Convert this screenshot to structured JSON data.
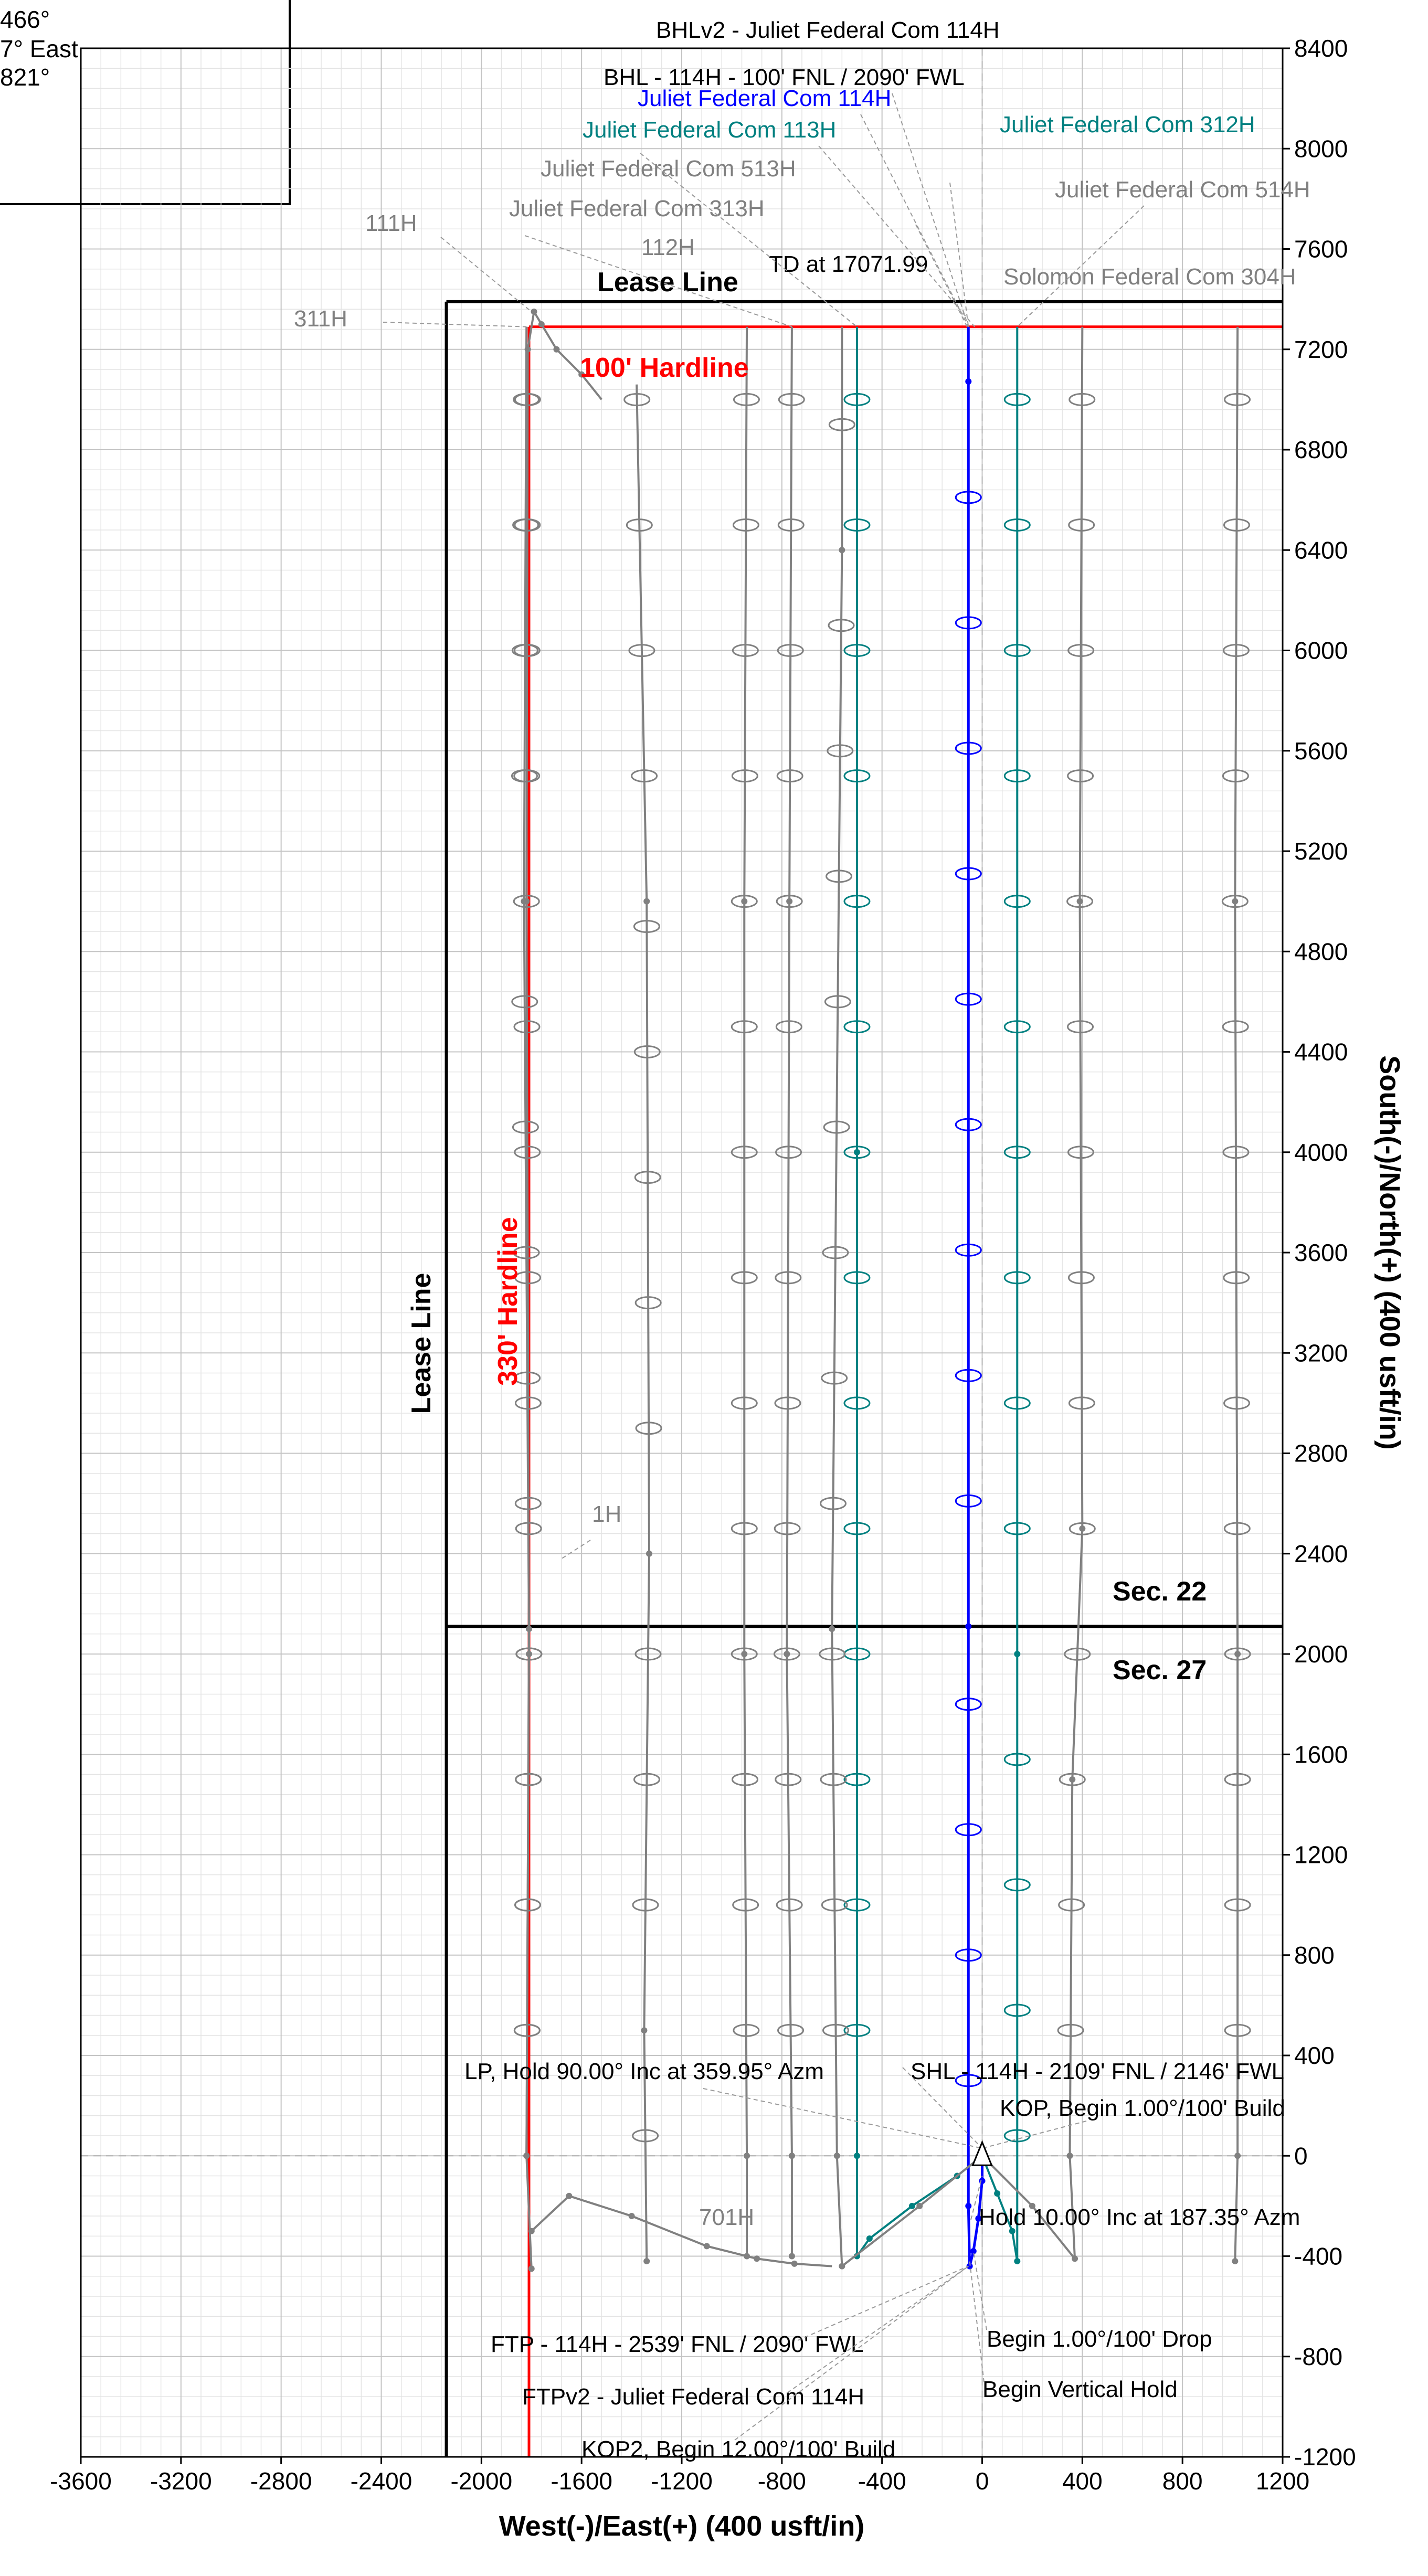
{
  "info_box": {
    "lines": [
      "466°",
      "7° East",
      "821°"
    ]
  },
  "chart_data": {
    "type": "line",
    "title": "",
    "xlabel": "West(-)/East(+) (400 usft/in)",
    "ylabel": "South(-)/North(+) (400 usft/in)",
    "xlim": [
      -3600,
      1200
    ],
    "ylim": [
      -1200,
      8400
    ],
    "x_ticks": [
      "-3600",
      "-3200",
      "-2800",
      "-2400",
      "-2000",
      "-1600",
      "-1200",
      "-800",
      "-400",
      "0",
      "400",
      "800",
      "1200"
    ],
    "y_ticks": [
      "8400",
      "8000",
      "7600",
      "7200",
      "6800",
      "6400",
      "6000",
      "5600",
      "5200",
      "4800",
      "4400",
      "4000",
      "3600",
      "3200",
      "2800",
      "2400",
      "2000",
      "1600",
      "1200",
      "800",
      "400",
      "0",
      "-400",
      "-800",
      "-1200"
    ],
    "grid": true,
    "colors": {
      "subject_well": "#0000ff",
      "offset_teal": "#008080",
      "offset_gray": "#808080",
      "hardline": "#ff0000",
      "lease": "#000000",
      "label_gray": "#808080",
      "label_teal": "#008080",
      "label_blue": "#0000ff",
      "label_red": "#ff0000"
    },
    "boundaries": {
      "lease_line_west_x": -2140,
      "lease_line_north_y": 7390,
      "section_line_y": 2110,
      "hardline_100_y": 7290,
      "hardline_330_x": -1810
    },
    "series": [
      {
        "name": "Juliet Federal Com 114H",
        "color": "subject_well",
        "x": [
          0,
          0,
          -15,
          -35,
          -50,
          -55,
          -55,
          -55,
          -55
        ],
        "y": [
          0,
          -100,
          -250,
          -380,
          -440,
          -200,
          2110,
          7071.99,
          7290
        ]
      },
      {
        "name": "Juliet Federal Com 113H",
        "color": "offset_teal",
        "x": [
          0,
          -100,
          -280,
          -450,
          -500,
          -500,
          -500,
          -500
        ],
        "y": [
          0,
          -80,
          -200,
          -330,
          -400,
          0,
          4000,
          7290
        ]
      },
      {
        "name": "Juliet Federal Com 312H",
        "color": "offset_teal",
        "x": [
          0,
          60,
          120,
          140,
          140,
          140
        ],
        "y": [
          0,
          -150,
          -300,
          -420,
          2000,
          7290
        ]
      },
      {
        "name": "Juliet Federal Com 513H",
        "color": "offset_gray",
        "x": [
          0,
          -250,
          -560,
          -580,
          -600,
          -560,
          -560
        ],
        "y": [
          0,
          -200,
          -440,
          0,
          2100,
          6400,
          7290
        ]
      },
      {
        "name": "Juliet Federal Com 313H",
        "color": "offset_gray",
        "x": [
          -760,
          -760,
          -780,
          -770,
          -760
        ],
        "y": [
          -400,
          0,
          2000,
          5000,
          7290
        ]
      },
      {
        "name": "112H",
        "color": "offset_gray",
        "x": [
          -940,
          -940,
          -950,
          -950,
          -940
        ],
        "y": [
          -400,
          0,
          2000,
          5000,
          7290
        ]
      },
      {
        "name": "Juliet Federal Com 514H",
        "color": "offset_gray",
        "x": [
          0,
          200,
          370,
          350,
          360,
          400,
          390,
          400
        ],
        "y": [
          0,
          -200,
          -410,
          0,
          1500,
          2500,
          5000,
          7290
        ]
      },
      {
        "name": "Solomon Federal Com 304H",
        "color": "offset_gray",
        "x": [
          1010,
          1020,
          1020,
          1010,
          1020
        ],
        "y": [
          -420,
          0,
          2000,
          5000,
          7290
        ]
      },
      {
        "name": "111H",
        "color": "offset_gray",
        "x": [
          -1800,
          -1820,
          -1810,
          -1820,
          -1815,
          -1790,
          -1760,
          -1700,
          -1600,
          -1520
        ],
        "y": [
          -450,
          0,
          2000,
          5000,
          7200,
          7350,
          7300,
          7200,
          7100,
          7000
        ]
      },
      {
        "name": "311H",
        "color": "offset_gray",
        "x": [
          -1820,
          -1810,
          -1830,
          -1820
        ],
        "y": [
          0,
          2100,
          5000,
          7290
        ]
      },
      {
        "name": "1H",
        "color": "offset_gray",
        "x": [
          -1340,
          -1350,
          -1330,
          -1340,
          -1380
        ],
        "y": [
          -420,
          500,
          2400,
          5000,
          7060
        ]
      },
      {
        "name": "701H",
        "color": "offset_gray",
        "x": [
          -1800,
          -1650,
          -1400,
          -1100,
          -900,
          -750,
          -600
        ],
        "y": [
          -300,
          -160,
          -240,
          -360,
          -410,
          -430,
          -440
        ]
      }
    ],
    "annotations": [
      {
        "text": "BHLv2 - Juliet Federal Com 114H",
        "color": "lease"
      },
      {
        "text": "BHL - 114H - 100' FNL / 2090' FWL",
        "color": "lease"
      },
      {
        "text": "Juliet Federal Com 114H",
        "color": "label_blue"
      },
      {
        "text": "Juliet Federal Com 113H",
        "color": "label_teal"
      },
      {
        "text": "Juliet Federal Com 312H",
        "color": "label_teal"
      },
      {
        "text": "Juliet Federal Com 513H",
        "color": "label_gray"
      },
      {
        "text": "Juliet Federal Com 514H",
        "color": "label_gray"
      },
      {
        "text": "Juliet Federal Com 313H",
        "color": "label_gray"
      },
      {
        "text": "111H",
        "color": "label_gray"
      },
      {
        "text": "112H",
        "color": "label_gray"
      },
      {
        "text": "TD at 17071.99",
        "color": "lease"
      },
      {
        "text": "Solomon Federal Com 304H",
        "color": "label_gray"
      },
      {
        "text": "311H",
        "color": "label_gray"
      },
      {
        "text": "Lease Line",
        "color": "lease"
      },
      {
        "text": "100' Hardline",
        "color": "label_red"
      },
      {
        "text": "Lease Line",
        "color": "lease"
      },
      {
        "text": "330' Hardline",
        "color": "label_red"
      },
      {
        "text": "1H",
        "color": "label_gray"
      },
      {
        "text": "Sec. 22",
        "color": "lease"
      },
      {
        "text": "Sec. 27",
        "color": "lease"
      },
      {
        "text": "SHL - 114H - 2109' FNL / 2146' FWL",
        "color": "lease"
      },
      {
        "text": "LP, Hold 90.00° Inc at 359.95° Azm",
        "color": "lease"
      },
      {
        "text": "KOP, Begin 1.00°/100' Build",
        "color": "lease"
      },
      {
        "text": "701H",
        "color": "label_gray"
      },
      {
        "text": "Hold 10.00° Inc at 187.35° Azm",
        "color": "lease"
      },
      {
        "text": "FTP - 114H - 2539' FNL / 2090' FWL",
        "color": "lease"
      },
      {
        "text": "Begin 1.00°/100' Drop",
        "color": "lease"
      },
      {
        "text": "FTPv2 - Juliet Federal Com 114H",
        "color": "lease"
      },
      {
        "text": "Begin Vertical Hold",
        "color": "lease"
      },
      {
        "text": "KOP2, Begin 12.00°/100' Build",
        "color": "lease"
      }
    ]
  }
}
